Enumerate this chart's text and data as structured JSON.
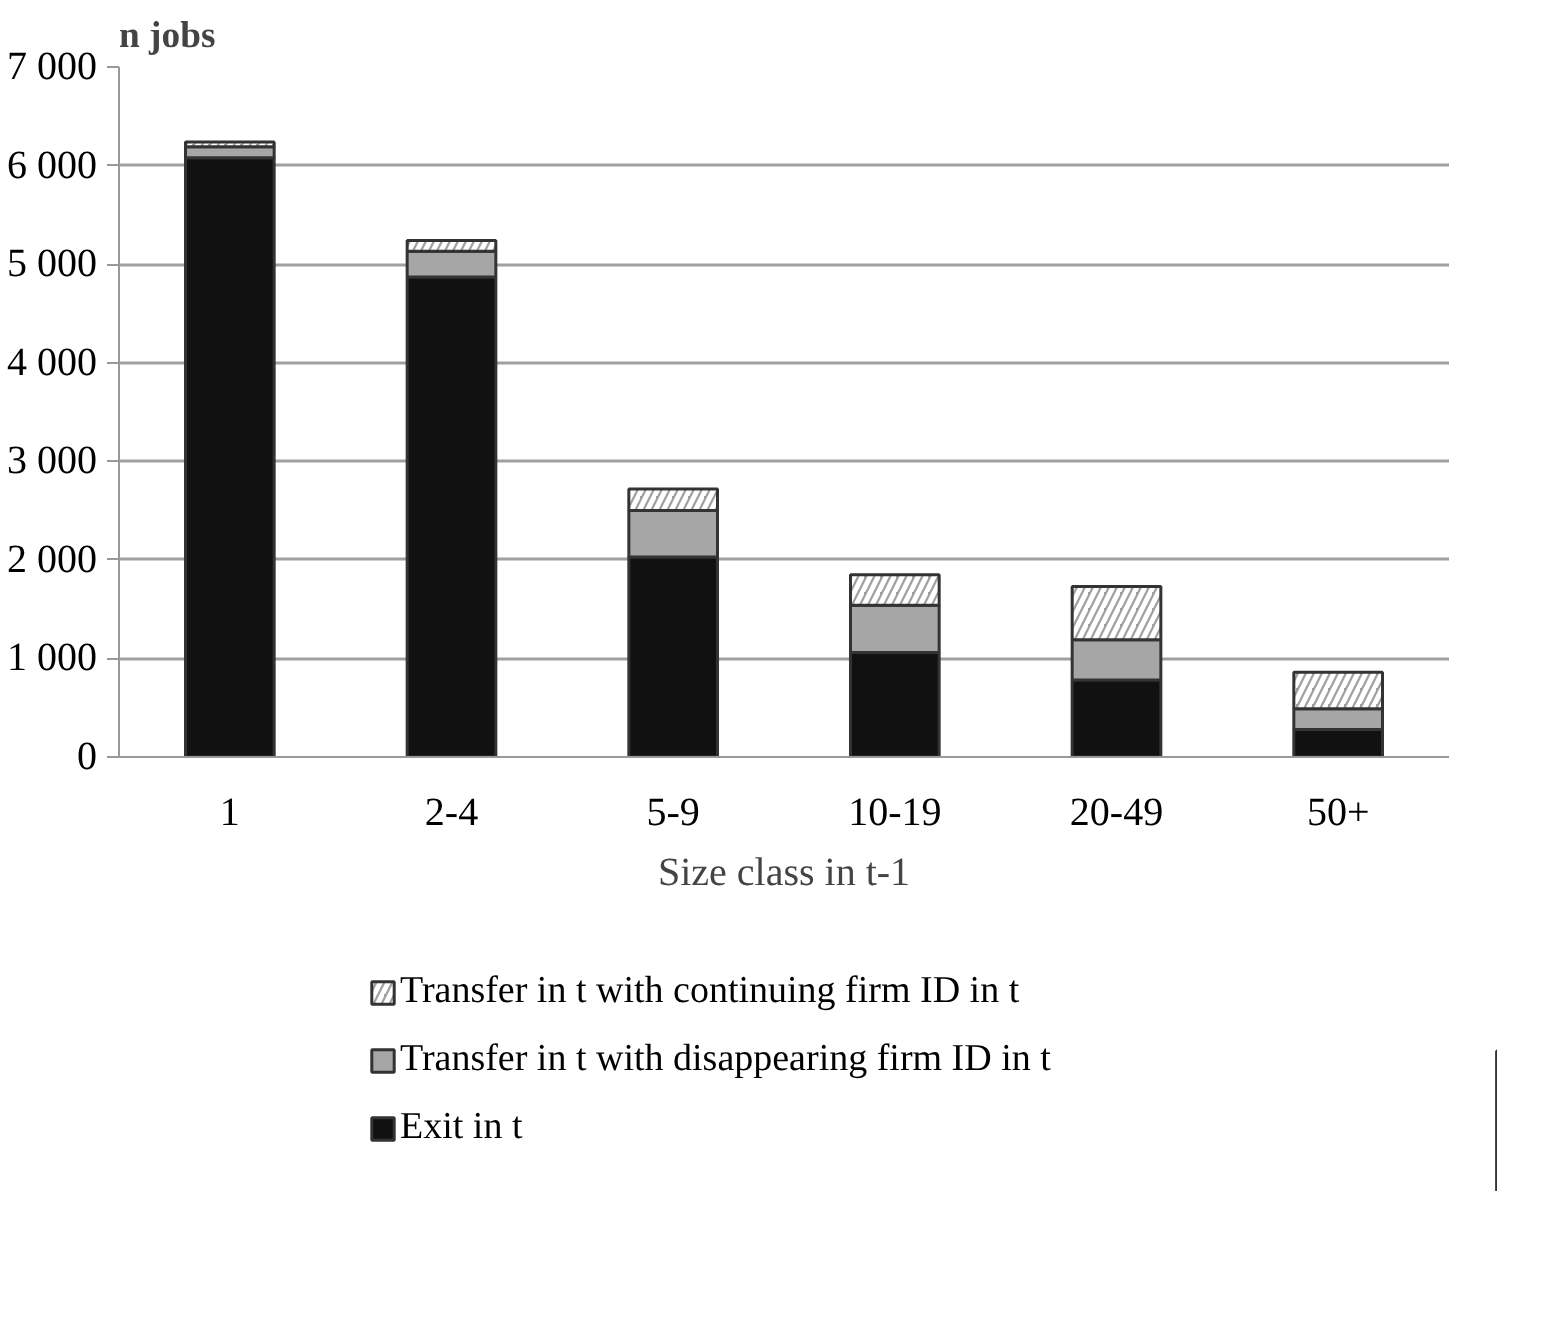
{
  "chart_data": {
    "type": "bar",
    "stacked": true,
    "ylabel": "n jobs",
    "xlabel": "Size class in t-1",
    "categories": [
      "1",
      "2-4",
      "5-9",
      "10-19",
      "20-49",
      "50+"
    ],
    "series": [
      {
        "name": "Exit in t",
        "color": "#111111",
        "values": [
          6080,
          4870,
          2030,
          1060,
          780,
          280
        ]
      },
      {
        "name": "Transfer in t with disappearing firm ID in t",
        "color": "#a6a6a6",
        "values": [
          110,
          260,
          470,
          480,
          410,
          210
        ]
      },
      {
        "name": "Transfer in t with continuing firm ID in t",
        "color": "#a0a0a0",
        "values": [
          50,
          110,
          220,
          310,
          540,
          370
        ]
      }
    ],
    "ylim": [
      0,
      7000
    ],
    "yticks": [
      {
        "value": 0,
        "label": "0"
      },
      {
        "value": 1000,
        "label": "1 000"
      },
      {
        "value": 2000,
        "label": "2 000"
      },
      {
        "value": 3000,
        "label": "3 000"
      },
      {
        "value": 4000,
        "label": "4 000"
      },
      {
        "value": 5000,
        "label": "5 000"
      },
      {
        "value": 6000,
        "label": "6 000"
      },
      {
        "value": 7000,
        "label": "7 000"
      }
    ],
    "grid": "y",
    "legend": "bottom"
  }
}
